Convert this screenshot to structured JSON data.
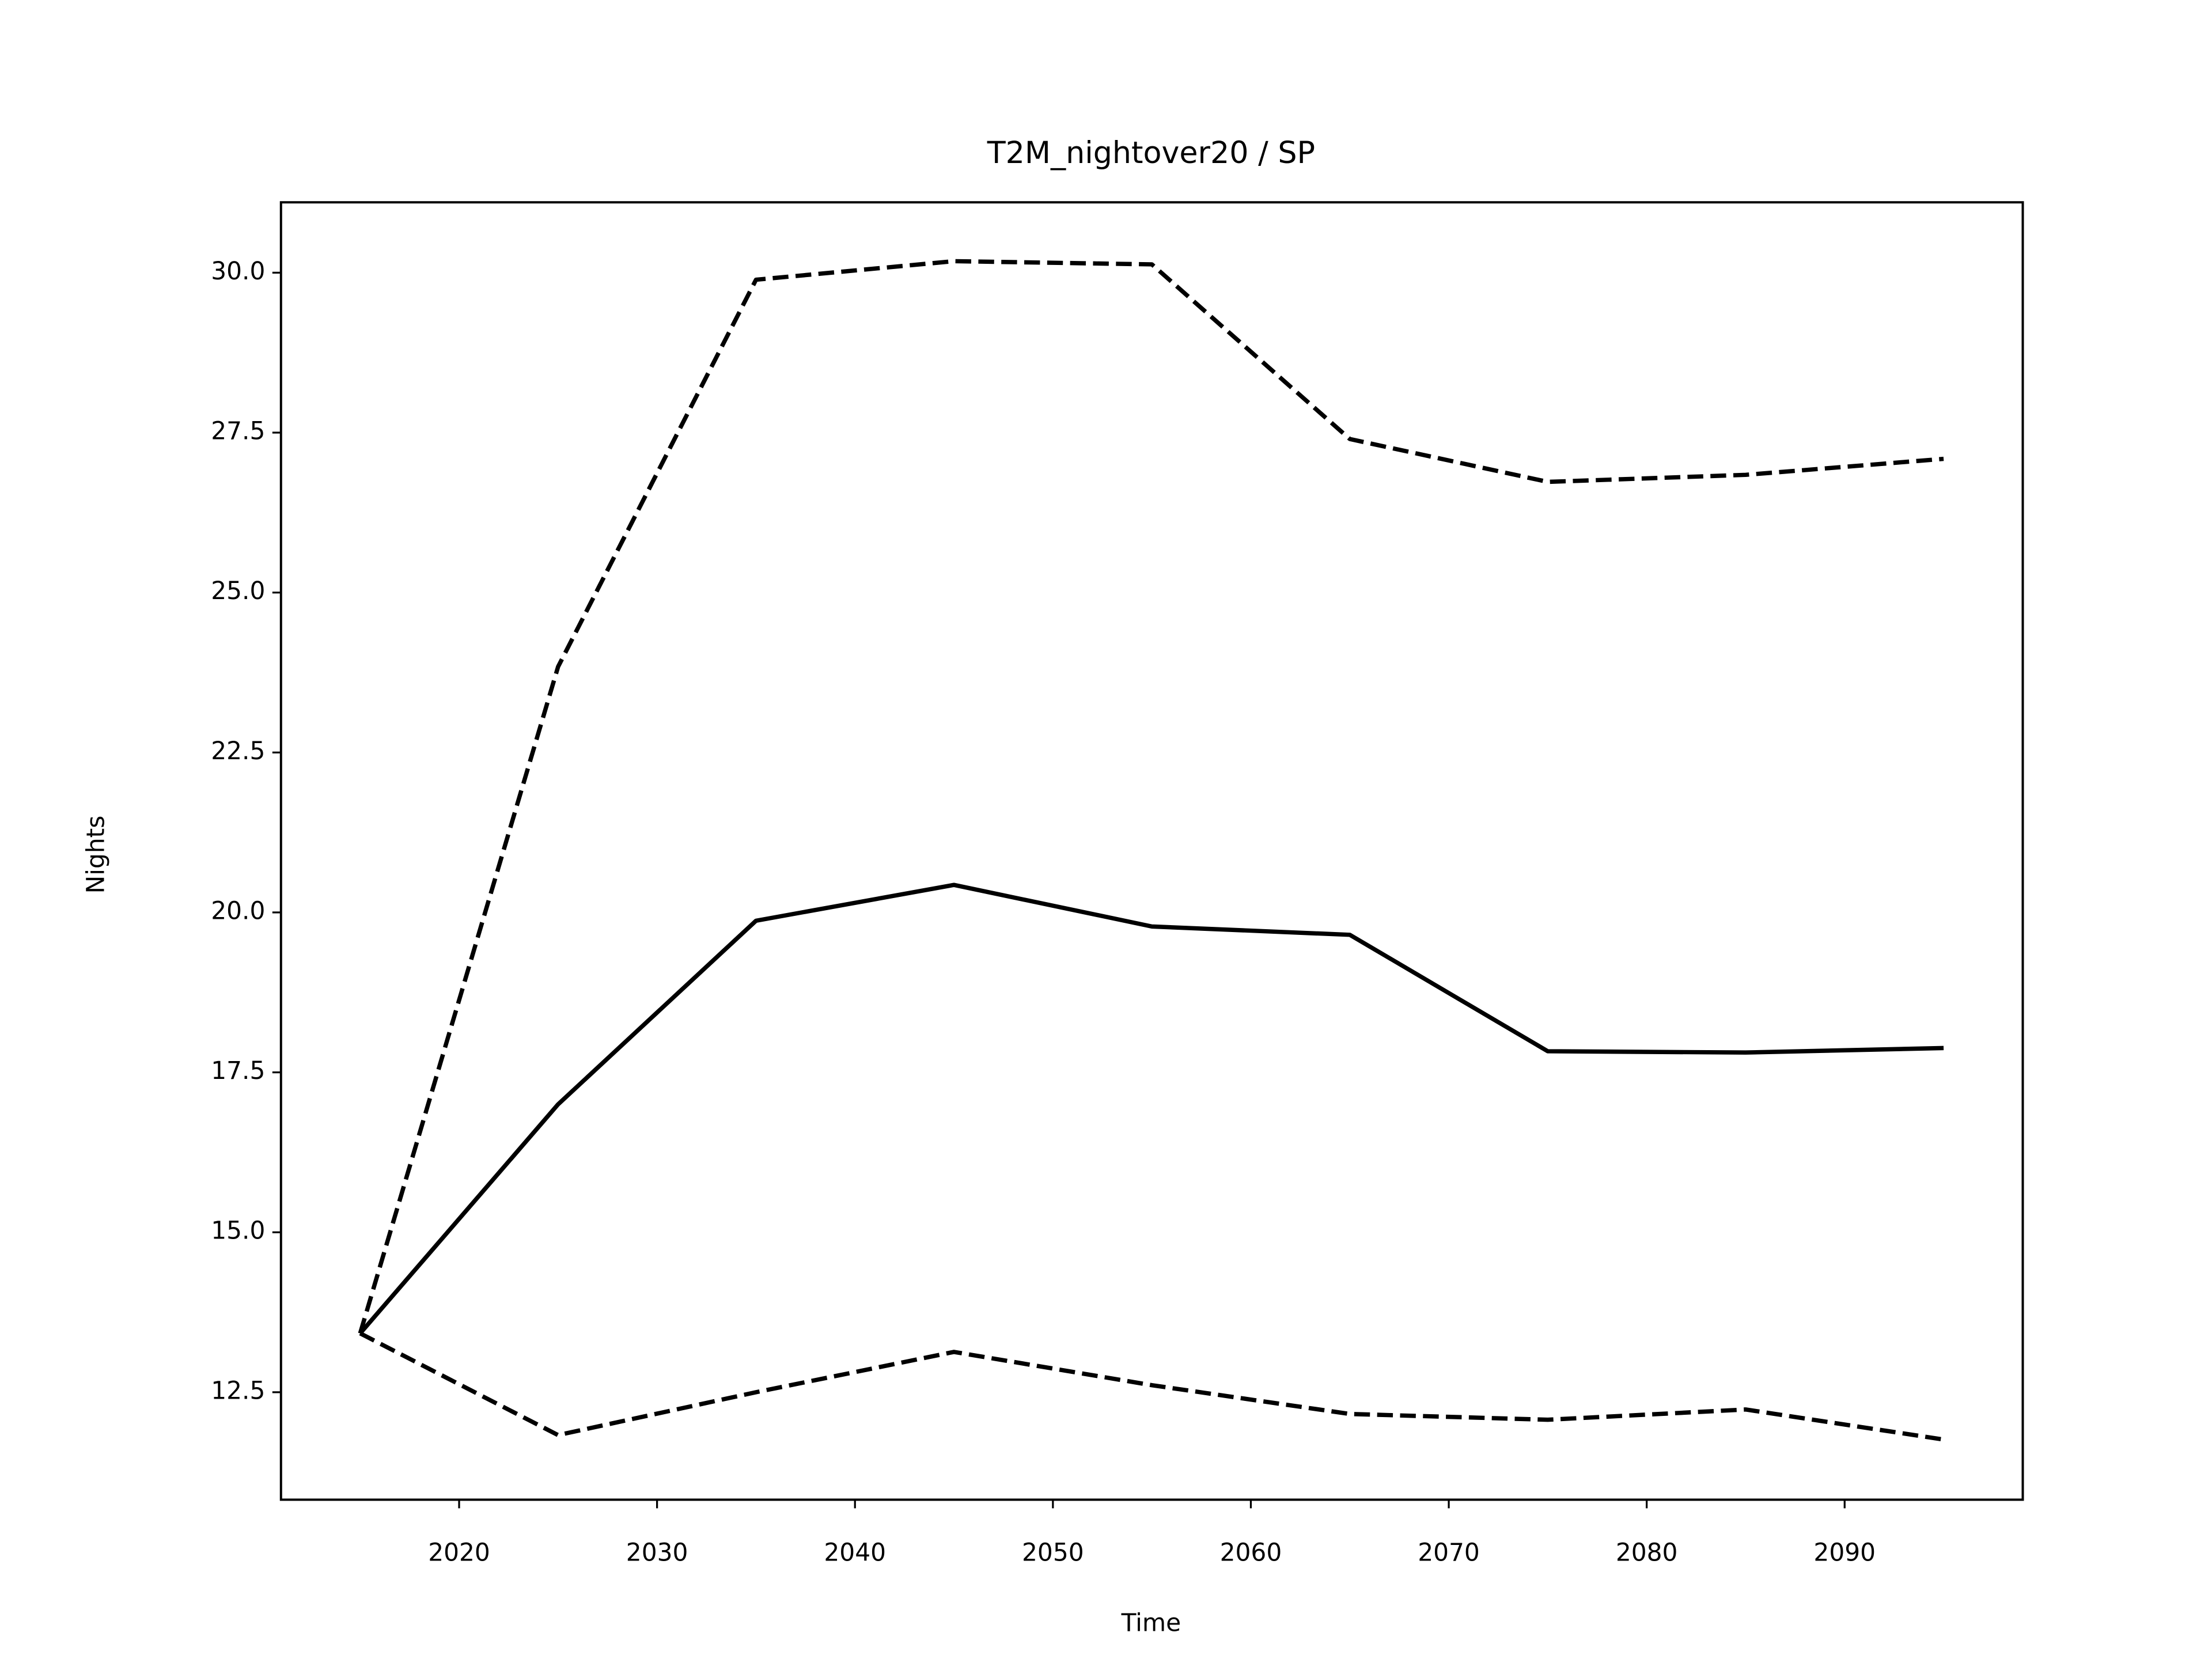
{
  "chart_data": {
    "type": "line",
    "title": "T2M_nightover20 / SP",
    "xlabel": "Time",
    "ylabel": "Nights",
    "x": [
      2015,
      2025,
      2035,
      2045,
      2055,
      2065,
      2075,
      2085,
      2095
    ],
    "series": [
      {
        "color": "#000000",
        "style": "solid",
        "values": [
          13.42,
          17.0,
          19.87,
          20.43,
          19.78,
          19.65,
          17.83,
          17.81,
          17.88
        ]
      },
      {
        "color": "#000000",
        "style": "dashed",
        "values": [
          13.42,
          23.84,
          29.89,
          30.18,
          30.13,
          27.4,
          26.73,
          26.84,
          27.09
        ]
      },
      {
        "color": "#000000",
        "style": "dashed",
        "values": [
          13.42,
          11.83,
          12.5,
          13.13,
          12.61,
          12.16,
          12.07,
          12.23,
          11.76
        ]
      }
    ],
    "xlim": [
      2011,
      2099
    ],
    "xticks": [
      2020,
      2030,
      2040,
      2050,
      2060,
      2070,
      2080,
      2090
    ],
    "ylim": [
      10.82,
      31.1
    ],
    "yticks": [
      12.5,
      {
        "value": 15,
        "label": "15.0"
      },
      17.5,
      {
        "value": 20,
        "label": "20.0"
      },
      22.5,
      {
        "value": 25,
        "label": "25.0"
      },
      27.5,
      {
        "value": 30,
        "label": "30.0"
      }
    ],
    "grid": false
  }
}
